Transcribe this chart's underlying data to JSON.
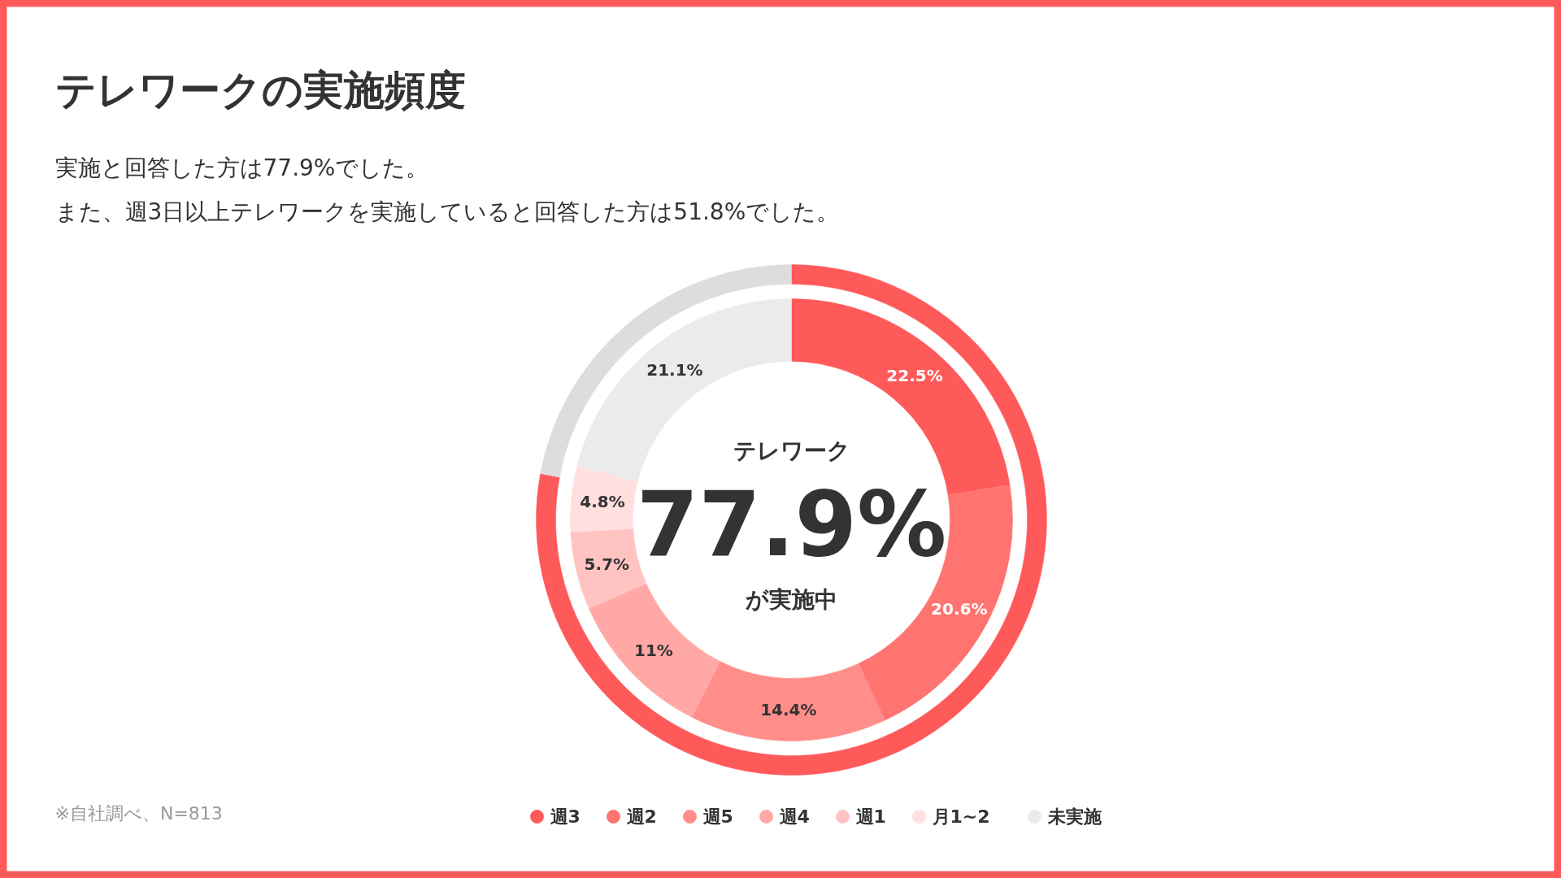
{
  "chart_data": {
    "type": "donut",
    "title": "テレワークの実施頻度",
    "subtitle": "実施と回答した方は77.9%でした。また、週3日以上テレワークを実施していると回答した方は51.8%でした。",
    "categories": [
      "週3",
      "週2",
      "週5",
      "週4",
      "週1",
      "月1~2",
      "未実施"
    ],
    "series": [
      {
        "values": [
          22.5,
          20.6,
          14.4,
          11,
          5.7,
          4.8,
          21.1
        ],
        "colors": [
          "#ff5a5a",
          "#ff7470",
          "#ff8e8a",
          "#ffa8a5",
          "#ffc4c2",
          "#ffe0df",
          "#ebebeb"
        ],
        "value_labels": [
          "22.5%",
          "20.6%",
          "14.4%",
          "11%",
          "5.7%",
          "4.8%",
          "21.1%"
        ]
      },
      {
        "values": [
          77.9,
          null,
          null,
          null,
          null,
          null,
          22.1
        ],
        "colors": [
          "#ff5a5a",
          null,
          null,
          null,
          null,
          null,
          "#dddddd"
        ]
      }
    ],
    "legend": "bottom",
    "annotations": [
      "テレワーク",
      "77.9%",
      "が実施中",
      "※自社調べ、N=813"
    ]
  }
}
